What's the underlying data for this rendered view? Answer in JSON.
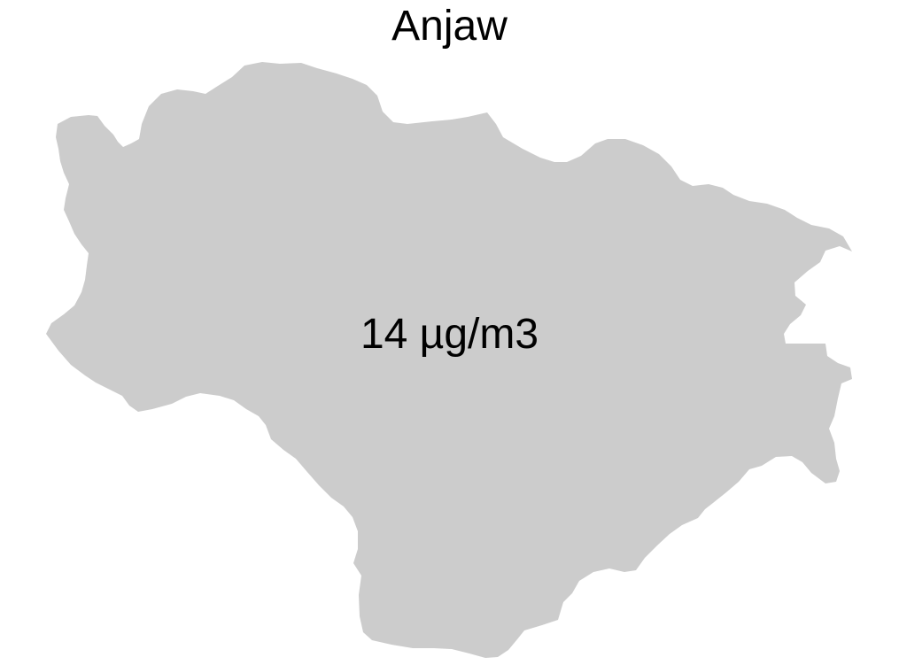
{
  "map": {
    "title": "Anjaw",
    "region_fill": "#cccccc",
    "value_label": "14 µg/m3"
  }
}
